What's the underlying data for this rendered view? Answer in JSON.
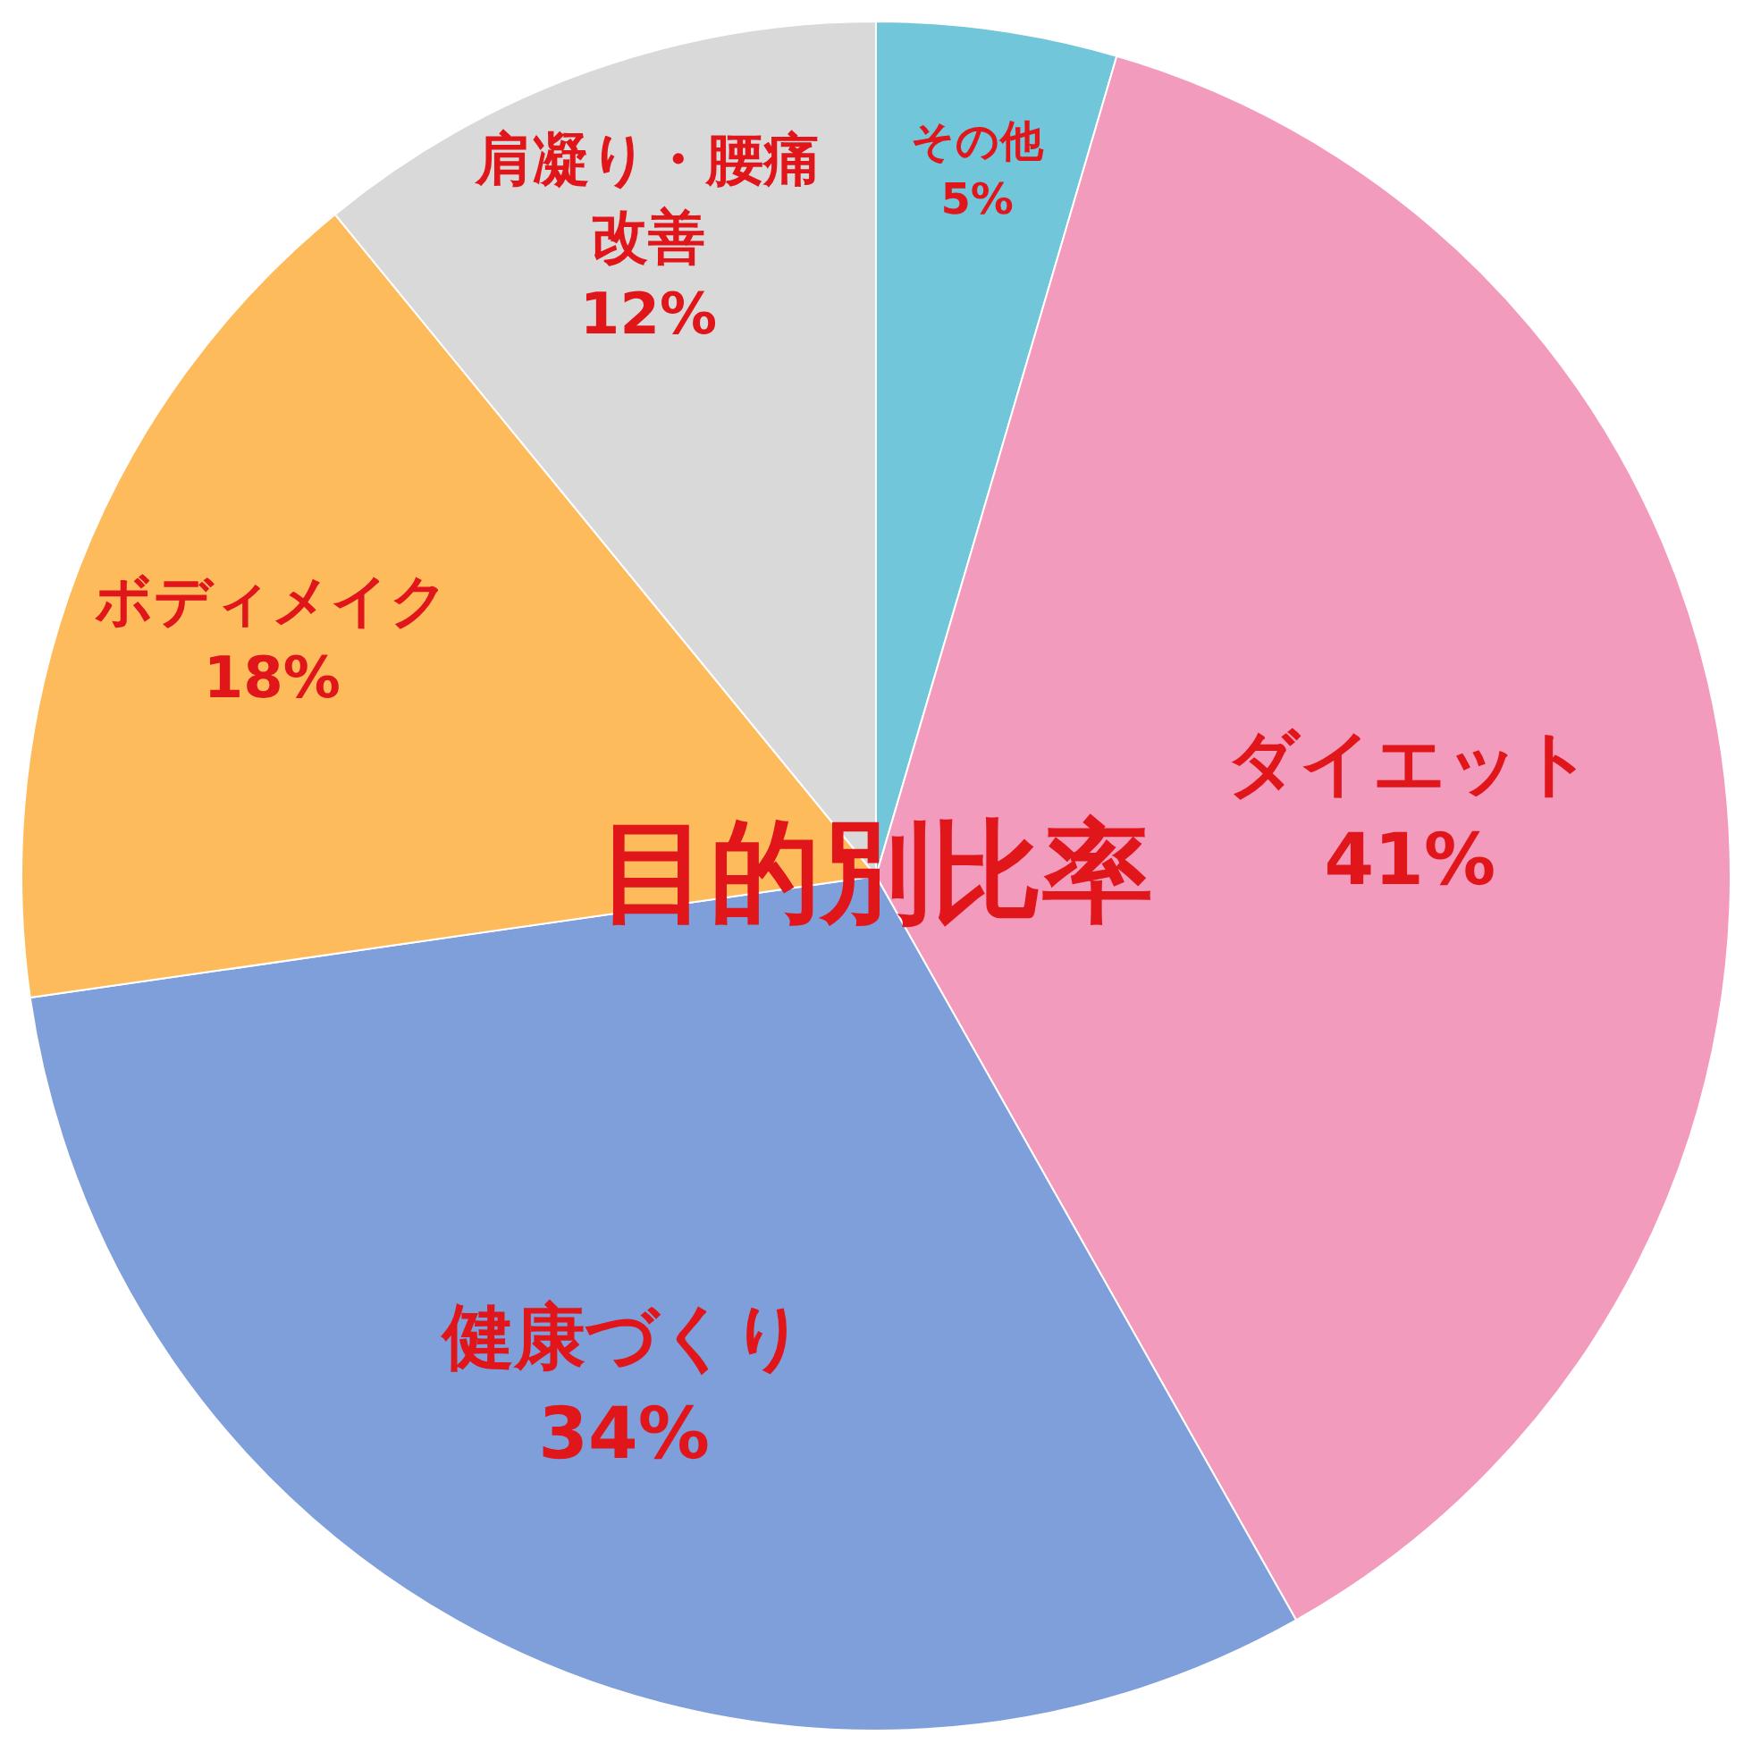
{
  "chart_data": {
    "type": "pie",
    "title": "目的別比率",
    "categories": [
      "その他",
      "ダイエット",
      "健康づくり",
      "ボディメイク",
      "肩凝り・腰痛改善"
    ],
    "values": [
      5,
      41,
      34,
      18,
      12
    ],
    "value_labels": [
      "5%",
      "41%",
      "34%",
      "18%",
      "12%"
    ],
    "colors": [
      "#72c6da",
      "#f39bbd",
      "#7f9fdb",
      "#fdbb5c",
      "#d9d9d9"
    ],
    "legend": false
  }
}
